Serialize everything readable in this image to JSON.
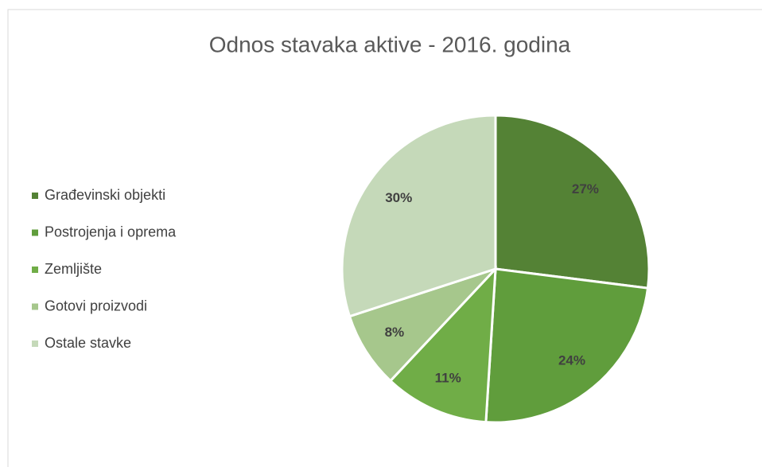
{
  "chart_data": {
    "type": "pie",
    "title": "Odnos stavaka aktive - 2016. godina",
    "categories": [
      "Građevinski objekti",
      "Postrojenja i oprema",
      "Zemljište",
      "Gotovi proizvodi",
      "Ostale stavke"
    ],
    "values": [
      27,
      24,
      11,
      8,
      30
    ],
    "value_labels": [
      "27%",
      "24%",
      "11%",
      "8%",
      "30%"
    ],
    "colors": [
      "#548235",
      "#609d3c",
      "#70ad47",
      "#a6c78c",
      "#c5d9b9"
    ],
    "legend": "left"
  }
}
